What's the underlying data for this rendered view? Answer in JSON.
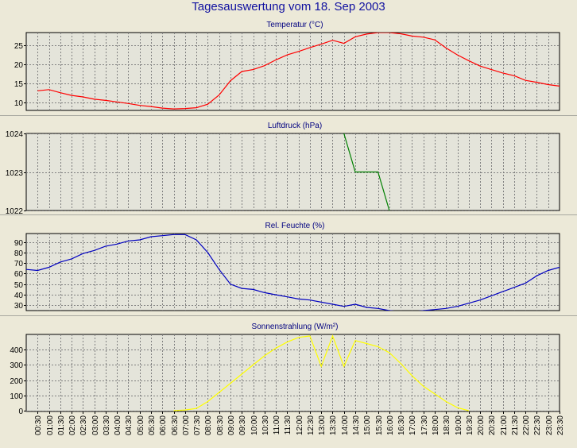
{
  "title": "Tagesauswertung vom 18. Sep 2003",
  "time_labels": [
    "00:30",
    "01:00",
    "01:30",
    "02:00",
    "02:30",
    "03:00",
    "03:30",
    "04:00",
    "04:30",
    "05:00",
    "05:30",
    "06:00",
    "06:30",
    "07:00",
    "07:30",
    "08:00",
    "08:30",
    "09:00",
    "09:30",
    "10:00",
    "10:30",
    "11:00",
    "11:30",
    "12:00",
    "12:30",
    "13:00",
    "13:30",
    "14:00",
    "14:30",
    "15:00",
    "15:30",
    "16:00",
    "16:30",
    "17:00",
    "17:30",
    "18:00",
    "18:30",
    "19:00",
    "19:30",
    "20:00",
    "20:30",
    "21:00",
    "21:30",
    "22:00",
    "22:30",
    "23:00",
    "23:30"
  ],
  "colors": {
    "temperature": "#ff0000",
    "pressure": "#008000",
    "humidity": "#0000c0",
    "solar": "#ffff00",
    "background": "#ece9d8",
    "plot_bg": "#e4e4da",
    "grid": "#808080"
  },
  "chart_data": [
    {
      "type": "line",
      "title": "Temperatur (°C)",
      "ylim": [
        8,
        28.2
      ],
      "yticks": [
        10,
        15,
        20,
        25
      ],
      "grid": true,
      "series": [
        {
          "color": "#ff0000",
          "x": [
            0.5,
            1,
            1.5,
            2,
            2.5,
            3,
            3.5,
            4,
            4.5,
            5,
            5.5,
            6,
            6.5,
            7,
            7.5,
            8,
            8.5,
            9,
            9.5,
            10,
            10.5,
            11,
            11.5,
            12,
            12.5,
            13,
            13.5,
            14,
            14.5,
            15,
            15.5,
            16,
            16.5,
            17,
            17.5,
            18,
            18.5,
            19,
            19.5,
            20,
            20.5,
            21,
            21.5,
            22,
            22.5,
            23,
            23.5
          ],
          "values": [
            13.1,
            13.4,
            12.6,
            11.9,
            11.5,
            10.9,
            10.6,
            10.2,
            9.8,
            9.3,
            9.0,
            8.6,
            8.4,
            8.5,
            8.7,
            9.6,
            12.0,
            15.7,
            18.1,
            18.6,
            19.6,
            21.1,
            22.4,
            23.3,
            24.3,
            25.2,
            26.2,
            25.4,
            27.1,
            27.8,
            28.2,
            28.2,
            27.9,
            27.3,
            27.0,
            26.3,
            24.2,
            22.4,
            20.9,
            19.5,
            18.6,
            17.7,
            17.0,
            15.8,
            15.3,
            14.7,
            14.3
          ]
        }
      ]
    },
    {
      "type": "line",
      "title": "Luftdruck (hPa)",
      "ylim": [
        1022,
        1024
      ],
      "yticks": [
        1022,
        1023,
        1024
      ],
      "grid": true,
      "series": [
        {
          "color": "#008000",
          "x": [
            14,
            14.5,
            15,
            15.5,
            16
          ],
          "values": [
            1024,
            1023,
            1023,
            1023,
            1022
          ]
        }
      ]
    },
    {
      "type": "line",
      "title": "Rel. Feuchte (%)",
      "ylim": [
        25,
        98
      ],
      "yticks": [
        30,
        40,
        50,
        60,
        70,
        80,
        90
      ],
      "grid": true,
      "series": [
        {
          "color": "#0000c0",
          "x": [
            0,
            0.5,
            1,
            1.5,
            2,
            2.5,
            3,
            3.5,
            4,
            4.5,
            5,
            5.5,
            6,
            6.5,
            7,
            7.5,
            8,
            8.5,
            9,
            9.5,
            10,
            10.5,
            11,
            11.5,
            12,
            12.5,
            13,
            13.5,
            14,
            14.5,
            15,
            15.5,
            16,
            16.5,
            17,
            17.5,
            18,
            18.5,
            19,
            19.5,
            20,
            20.5,
            21,
            21.5,
            22,
            22.5,
            23,
            23.5
          ],
          "values": [
            64,
            63,
            66,
            71,
            74,
            79,
            82,
            86,
            88,
            91,
            92,
            95,
            96,
            97,
            97,
            92,
            80,
            64,
            50,
            46,
            45,
            42,
            40,
            38,
            36,
            35,
            33,
            31,
            29,
            31,
            28,
            27,
            25,
            24,
            24,
            25,
            26,
            27,
            29,
            32,
            35,
            39,
            43,
            47,
            51,
            58,
            63,
            66
          ]
        }
      ]
    },
    {
      "type": "line",
      "title": "Sonnenstrahlung (W/m²)",
      "ylim": [
        -5,
        500
      ],
      "yticks": [
        0,
        100,
        200,
        300,
        400
      ],
      "grid": true,
      "series": [
        {
          "color": "#ffff00",
          "x": [
            6.5,
            7,
            7.5,
            8,
            8.5,
            9,
            9.5,
            10,
            10.5,
            11,
            11.5,
            12,
            12.5,
            13,
            13.5,
            14,
            14.5,
            15,
            15.5,
            16,
            16.5,
            17,
            17.5,
            18,
            18.5,
            19,
            19.5
          ],
          "values": [
            0,
            5,
            15,
            60,
            120,
            180,
            240,
            300,
            360,
            410,
            450,
            480,
            490,
            290,
            490,
            290,
            460,
            440,
            420,
            380,
            310,
            230,
            160,
            110,
            60,
            20,
            0
          ]
        }
      ]
    }
  ]
}
